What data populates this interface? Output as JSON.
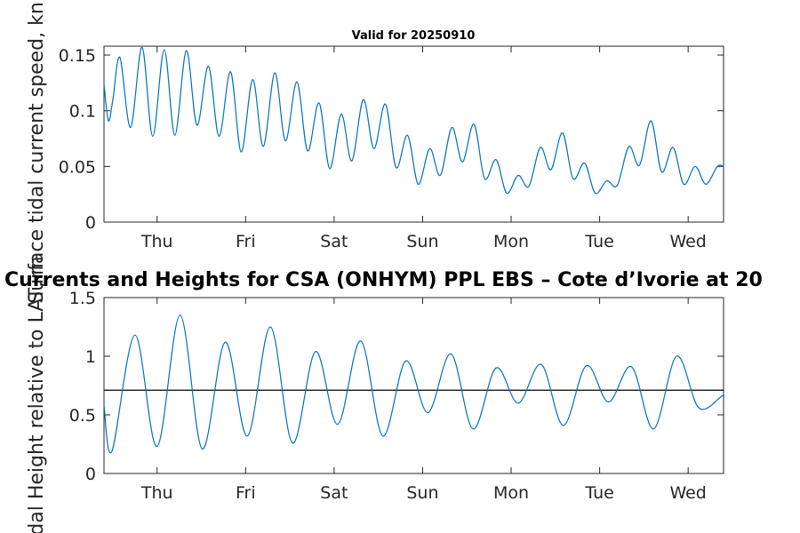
{
  "colors": {
    "series": "#0072BD",
    "axis": "#262626",
    "reference": "#000000"
  },
  "chart_data": [
    {
      "type": "line",
      "title": "Valid for 20250910",
      "ylabel": "Surface tidal current speed, kn",
      "xlabel": "",
      "x_tick_labels": [
        "Thu",
        "Fri",
        "Sat",
        "Sun",
        "Mon",
        "Tue",
        "Wed"
      ],
      "x_tick_positions_days": [
        0.6,
        1.6,
        2.6,
        3.6,
        4.6,
        5.6,
        6.6
      ],
      "xlim_days": [
        0,
        7
      ],
      "ylim": [
        0,
        0.158
      ],
      "y_ticks": [
        0,
        0.05,
        0.1,
        0.15
      ],
      "y_tick_labels": [
        "0",
        "0.05",
        "0.1",
        "0.15"
      ],
      "grid": false,
      "series": [
        {
          "x": [
            0.0,
            0.05,
            0.1,
            0.18,
            0.3,
            0.43,
            0.55,
            0.68,
            0.8,
            0.93,
            1.05,
            1.18,
            1.3,
            1.43,
            1.55,
            1.68,
            1.8,
            1.93,
            2.05,
            2.18,
            2.3,
            2.43,
            2.55,
            2.68,
            2.8,
            2.93,
            3.05,
            3.18,
            3.3,
            3.43,
            3.55,
            3.68,
            3.8,
            3.93,
            4.05,
            4.18,
            4.3,
            4.43,
            4.55,
            4.68,
            4.8,
            4.93,
            5.05,
            5.18,
            5.3,
            5.43,
            5.55,
            5.68,
            5.8,
            5.93,
            6.05,
            6.18,
            6.3,
            6.43,
            6.55,
            6.68,
            6.8,
            6.93,
            7.0
          ],
          "values": [
            0.124,
            0.091,
            0.11,
            0.148,
            0.085,
            0.157,
            0.077,
            0.155,
            0.078,
            0.154,
            0.087,
            0.14,
            0.077,
            0.135,
            0.063,
            0.128,
            0.068,
            0.134,
            0.073,
            0.126,
            0.064,
            0.107,
            0.048,
            0.097,
            0.055,
            0.11,
            0.066,
            0.106,
            0.049,
            0.078,
            0.034,
            0.066,
            0.042,
            0.085,
            0.054,
            0.088,
            0.039,
            0.056,
            0.026,
            0.042,
            0.032,
            0.067,
            0.047,
            0.08,
            0.039,
            0.053,
            0.026,
            0.037,
            0.033,
            0.068,
            0.051,
            0.091,
            0.045,
            0.067,
            0.034,
            0.05,
            0.034,
            0.05,
            0.05
          ]
        }
      ]
    },
    {
      "type": "line",
      "title": "Currents and Heights for CSA (ONHYM) PPL EBS  – Cote d’Ivorie at 20",
      "ylabel": "Tidal Height relative to LAT, m",
      "xlabel": "",
      "x_tick_labels": [
        "Thu",
        "Fri",
        "Sat",
        "Sun",
        "Mon",
        "Tue",
        "Wed"
      ],
      "x_tick_positions_days": [
        0.6,
        1.6,
        2.6,
        3.6,
        4.6,
        5.6,
        6.6
      ],
      "xlim_days": [
        0,
        7
      ],
      "ylim": [
        0,
        1.5
      ],
      "y_ticks": [
        0,
        0.5,
        1,
        1.5
      ],
      "y_tick_labels": [
        "0",
        "0.5",
        "1",
        "1.5"
      ],
      "reference_line": 0.71,
      "grid": false,
      "series": [
        {
          "x": [
            0.0,
            0.09,
            0.35,
            0.6,
            0.86,
            1.11,
            1.37,
            1.62,
            1.88,
            2.13,
            2.39,
            2.64,
            2.9,
            3.15,
            3.41,
            3.66,
            3.92,
            4.17,
            4.43,
            4.68,
            4.94,
            5.19,
            5.45,
            5.7,
            5.96,
            6.21,
            6.47,
            6.72,
            6.98,
            7.0
          ],
          "values": [
            0.58,
            0.19,
            1.18,
            0.23,
            1.35,
            0.21,
            1.12,
            0.32,
            1.25,
            0.26,
            1.04,
            0.42,
            1.13,
            0.32,
            0.96,
            0.52,
            1.02,
            0.38,
            0.9,
            0.6,
            0.93,
            0.41,
            0.92,
            0.61,
            0.91,
            0.38,
            1.0,
            0.56,
            0.66,
            0.66
          ]
        }
      ]
    }
  ]
}
